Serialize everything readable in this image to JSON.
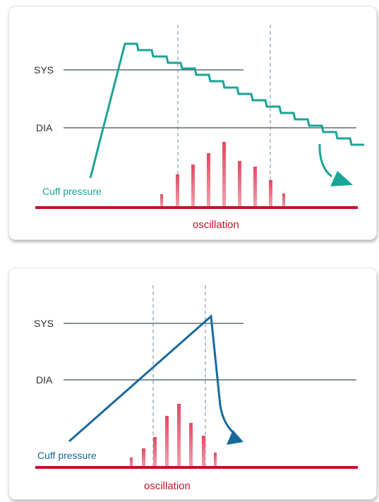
{
  "colors": {
    "pressure_line_1": "#1aa597",
    "pressure_line_2": "#17699e",
    "oscillation_bar": "#e2455e",
    "baseline": "#c3132b",
    "reference_line": "#5f6b74",
    "marker_line": "#8fa3b8"
  },
  "diagram_1": {
    "sys_label": "SYS",
    "dia_label": "DIA",
    "cuff_label": "Cuff pressure",
    "oscillation_label": "oscillation"
  },
  "diagram_2": {
    "sys_label": "SYS",
    "dia_label": "DIA",
    "cuff_label": "Cuff pressure",
    "oscillation_label": "oscillation"
  }
}
